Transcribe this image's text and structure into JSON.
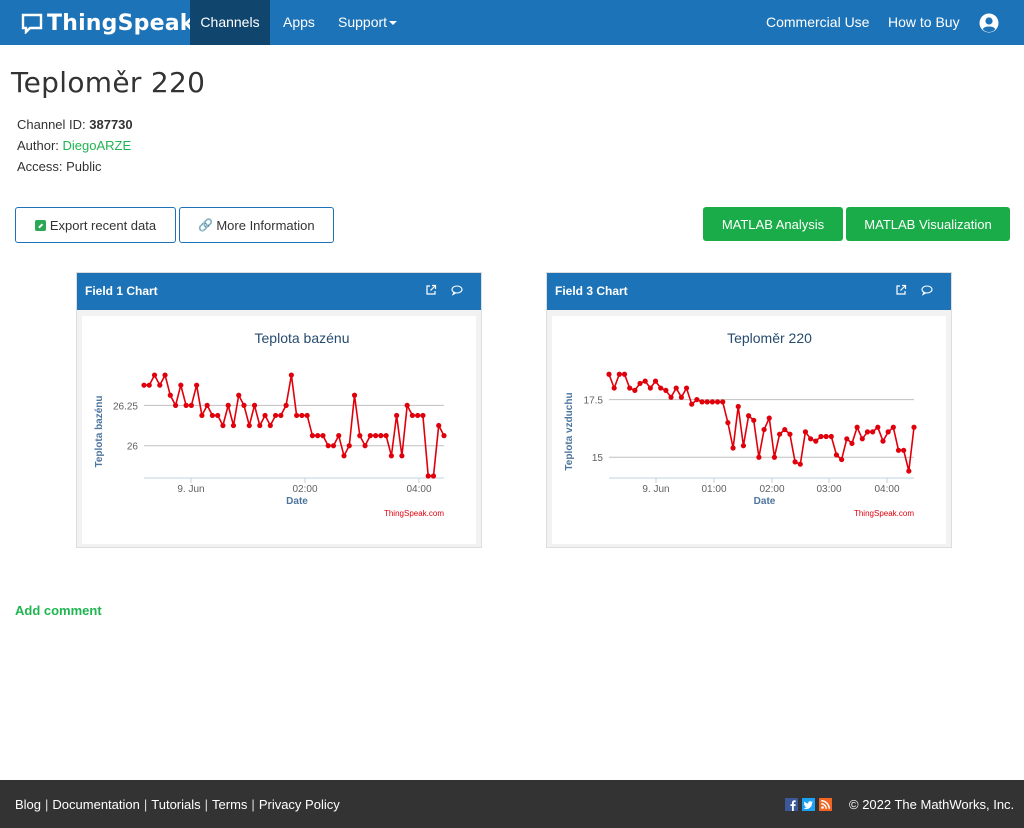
{
  "nav": {
    "brand": "ThingSpeak",
    "tm": "™",
    "items": {
      "channels": "Channels",
      "apps": "Apps",
      "support": "Support",
      "commercial": "Commercial Use",
      "how_to_buy": "How to Buy"
    }
  },
  "channel": {
    "title": "Teploměr 220",
    "id_label": "Channel ID: ",
    "id_value": "387730",
    "author_label": "Author: ",
    "author_value": "DiegoARZE",
    "access_label": "Access: ",
    "access_value": "Public"
  },
  "actions": {
    "export": "Export recent data",
    "more_info": "More Information",
    "matlab_analysis": "MATLAB Analysis",
    "matlab_visualization": "MATLAB Visualization"
  },
  "panels": [
    {
      "heading": "Field 1 Chart"
    },
    {
      "heading": "Field 3 Chart"
    }
  ],
  "colors": {
    "nav": "#1d73b7",
    "nav_active": "#10466e",
    "green": "#1aac48",
    "series": "#e0000b",
    "footer": "#333333"
  },
  "chart_data": [
    {
      "type": "line",
      "title": "Teplota bazénu",
      "xlabel": "Date",
      "ylabel": "Teplota bazénu",
      "credit": "ThingSpeak.com",
      "x_ticks": [
        "9. Jun",
        "02:00",
        "04:00"
      ],
      "y_ticks": [
        26,
        26.25
      ],
      "ylim": [
        25.8,
        26.5
      ],
      "grid": true,
      "series": [
        {
          "values": [
            26.375,
            26.375,
            26.4375,
            26.375,
            26.4375,
            26.3125,
            26.25,
            26.375,
            26.25,
            26.25,
            26.375,
            26.1875,
            26.25,
            26.1875,
            26.1875,
            26.125,
            26.25,
            26.125,
            26.3125,
            26.25,
            26.125,
            26.25,
            26.125,
            26.1875,
            26.125,
            26.1875,
            26.1875,
            26.25,
            26.4375,
            26.1875,
            26.1875,
            26.1875,
            26.0625,
            26.0625,
            26.0625,
            26.0,
            26.0,
            26.0625,
            25.9375,
            26.0,
            26.3125,
            26.0625,
            26.0,
            26.0625,
            26.0625,
            26.0625,
            26.0625,
            25.9375,
            26.1875,
            25.9375,
            26.25,
            26.1875,
            26.1875,
            26.1875,
            25.8125,
            25.8125,
            26.125,
            26.0625
          ]
        }
      ]
    },
    {
      "type": "line",
      "title": "Teploměr 220",
      "xlabel": "Date",
      "ylabel": "Teplota vzduchu",
      "credit": "ThingSpeak.com",
      "x_ticks": [
        "9. Jun",
        "01:00",
        "02:00",
        "03:00",
        "04:00"
      ],
      "y_ticks": [
        15,
        17.5
      ],
      "ylim": [
        14.1,
        19.0
      ],
      "grid": true,
      "series": [
        {
          "values": [
            18.6,
            18.0,
            18.6,
            18.6,
            18.0,
            17.9,
            18.2,
            18.3,
            18.0,
            18.3,
            18.0,
            17.9,
            17.6,
            18.0,
            17.6,
            18.0,
            17.3,
            17.5,
            17.4,
            17.4,
            17.4,
            17.4,
            17.4,
            16.5,
            15.4,
            17.2,
            15.5,
            16.8,
            16.6,
            15.0,
            16.2,
            16.7,
            15.0,
            16.0,
            16.2,
            16.0,
            14.8,
            14.7,
            16.1,
            15.8,
            15.7,
            15.9,
            15.9,
            15.9,
            15.1,
            14.9,
            15.8,
            15.6,
            16.3,
            15.8,
            16.1,
            16.1,
            16.3,
            15.7,
            16.1,
            16.3,
            15.3,
            15.3,
            14.4,
            16.3
          ]
        }
      ]
    }
  ],
  "comments": {
    "add": "Add comment"
  },
  "footer": {
    "links": [
      "Blog",
      "Documentation",
      "Tutorials",
      "Terms",
      "Privacy Policy"
    ],
    "copyright": "© 2022 The MathWorks, Inc."
  }
}
